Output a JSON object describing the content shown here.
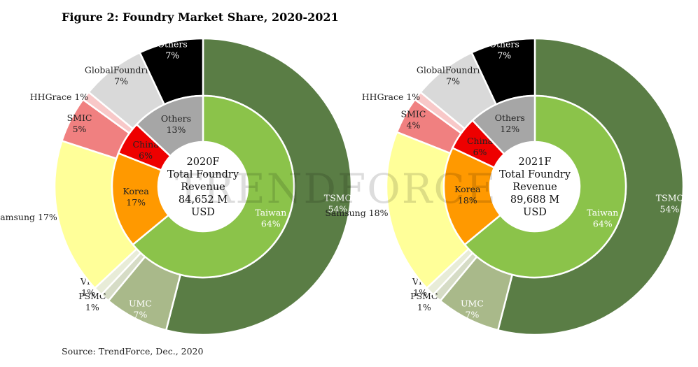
{
  "figure_title": "Figure 2: Foundry Market Share, 2020-2021",
  "source_note": "Source: TrendForce, Dec., 2020",
  "watermark": "TRENDFORCE",
  "colors": {
    "tsmc": "#5a7d45",
    "taiwan": "#8bc34a",
    "umc": "#a9b98a",
    "psmc": "#d6dcc6",
    "vis": "#e8ecd8",
    "samsung": "#ffff99",
    "korea": "#ff9900",
    "smic": "#f08080",
    "hhgrace": "#f8c8c8",
    "china": "#ee0000",
    "globalfoundries": "#d9d9d9",
    "others_inner": "#a6a6a6",
    "others_outer": "#000000"
  },
  "chart_data": [
    {
      "type": "pie",
      "subtype": "nested-donut",
      "center_lines": [
        "2020F",
        "Total Foundry",
        "Revenue",
        "84,652 M",
        "USD"
      ],
      "inner_ring": [
        {
          "label": "Taiwan",
          "value": 64,
          "display": "64%",
          "color_key": "taiwan"
        },
        {
          "label": "Korea",
          "value": 17,
          "display": "17%",
          "color_key": "korea"
        },
        {
          "label": "China",
          "value": 6,
          "display": "6%",
          "color_key": "china"
        },
        {
          "label": "Others",
          "value": 13,
          "display": "13%",
          "color_key": "others_inner"
        }
      ],
      "outer_ring": [
        {
          "label": "TSMC",
          "value": 54,
          "display": "54%",
          "color_key": "tsmc"
        },
        {
          "label": "UMC",
          "value": 7,
          "display": "7%",
          "color_key": "umc"
        },
        {
          "label": "PSMC",
          "value": 1,
          "display": "1%",
          "color_key": "psmc"
        },
        {
          "label": "VIS",
          "value": 1,
          "display": "1%",
          "color_key": "vis"
        },
        {
          "label": "Samsung",
          "value": 17,
          "display": "17%",
          "color_key": "samsung"
        },
        {
          "label": "SMIC",
          "value": 5,
          "display": "5%",
          "color_key": "smic"
        },
        {
          "label": "HHGrace",
          "value": 1,
          "display": "1%",
          "color_key": "hhgrace"
        },
        {
          "label": "GlobalFoundries",
          "value": 7,
          "display": "7%",
          "color_key": "globalfoundries"
        },
        {
          "label": "Others",
          "value": 7,
          "display": "7%",
          "color_key": "others_outer"
        }
      ]
    },
    {
      "type": "pie",
      "subtype": "nested-donut",
      "center_lines": [
        "2021F",
        "Total Foundry",
        "Revenue",
        "89,688 M",
        "USD"
      ],
      "inner_ring": [
        {
          "label": "Taiwan",
          "value": 64,
          "display": "64%",
          "color_key": "taiwan"
        },
        {
          "label": "Korea",
          "value": 18,
          "display": "18%",
          "color_key": "korea"
        },
        {
          "label": "China",
          "value": 6,
          "display": "6%",
          "color_key": "china"
        },
        {
          "label": "Others",
          "value": 12,
          "display": "12%",
          "color_key": "others_inner"
        }
      ],
      "outer_ring": [
        {
          "label": "TSMC",
          "value": 54,
          "display": "54%",
          "color_key": "tsmc"
        },
        {
          "label": "UMC",
          "value": 7,
          "display": "7%",
          "color_key": "umc"
        },
        {
          "label": "PSMC",
          "value": 1,
          "display": "1%",
          "color_key": "psmc"
        },
        {
          "label": "VIS",
          "value": 1,
          "display": "1%",
          "color_key": "vis"
        },
        {
          "label": "Samsung",
          "value": 18,
          "display": "18%",
          "color_key": "samsung"
        },
        {
          "label": "SMIC",
          "value": 4,
          "display": "4%",
          "color_key": "smic"
        },
        {
          "label": "HHGrace",
          "value": 1,
          "display": "1%",
          "color_key": "hhgrace"
        },
        {
          "label": "GlobalFoundries",
          "value": 7,
          "display": "7%",
          "color_key": "globalfoundries"
        },
        {
          "label": "Others",
          "value": 7,
          "display": "7%",
          "color_key": "others_outer"
        }
      ]
    }
  ]
}
